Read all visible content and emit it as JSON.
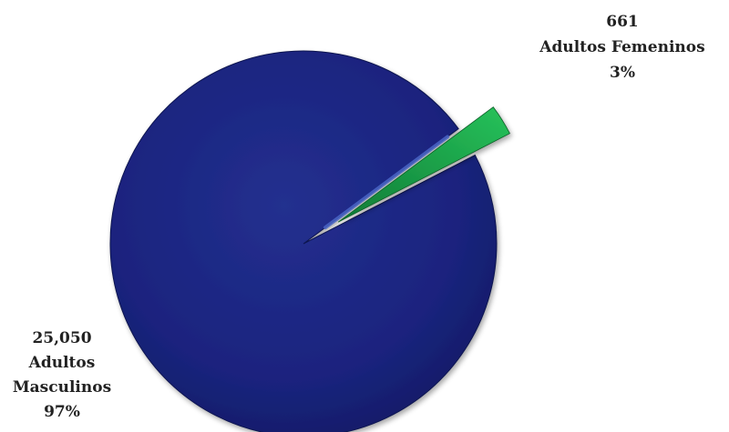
{
  "chart_data": {
    "type": "pie",
    "title": "",
    "slices": [
      {
        "value_text": "25,050",
        "category": "Adultos",
        "category_line2": "Masculinos",
        "percent_text": "97%",
        "value": 25050,
        "color": "#1a237e"
      },
      {
        "value_text": "661",
        "category": "Adultos Femeninos",
        "percent_text": "3%",
        "value": 661,
        "color": "#1fa34a",
        "exploded": true
      }
    ],
    "legend": "none"
  }
}
